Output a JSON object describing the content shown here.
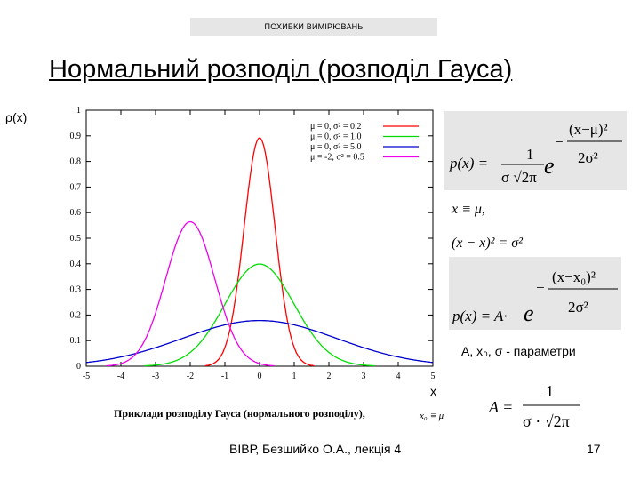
{
  "slide": {
    "banner": "ПОХИБКИ ВИМІРЮВАНЬ",
    "title": "Нормальний розподіл (розподіл Гауса)",
    "y_label": "ρ(x)",
    "x_label": "x",
    "caption": "Приклади розподілу Гауса (нормального розподілу),",
    "footer": "ВІВР, Безшийко О.А., лекція 4",
    "page_number": "17",
    "params_text": "А, x₀, σ  - параметри"
  },
  "formulas": {
    "f1_lhs": "p(x) =",
    "f1_num": "1",
    "f1_den": "σ √2π",
    "f1_base": "e",
    "f1_exp_num": "(x−μ)²",
    "f1_exp_den": "2σ²",
    "f2": "x ≡ μ,",
    "f3": "(x − x)² = σ²",
    "f4_lhs": "p(x) = A·",
    "f4_base": "e",
    "f4_exp_num": "(x−x₀)²",
    "f4_exp_den": "2σ²",
    "f5_lhs": "A =",
    "f5_num": "1",
    "f5_den": "σ · √2π",
    "f6": "x₀ ≡ μ"
  },
  "chart_data": {
    "type": "line",
    "xlim": [
      -5,
      5
    ],
    "ylim": [
      0,
      1
    ],
    "xticks": [
      "-5",
      "-4",
      "-3",
      "-2",
      "-1",
      "0",
      "1",
      "2",
      "3",
      "4",
      "5"
    ],
    "yticks": [
      "0",
      "0.1",
      "0.2",
      "0.3",
      "0.4",
      "0.5",
      "0.6",
      "0.7",
      "0.8",
      "0.9",
      "1"
    ],
    "legend_position": "top-right",
    "series": [
      {
        "name": "μ = 0, σ² = 0.2",
        "mu": 0,
        "sigma2": 0.2,
        "color": "#ff0000"
      },
      {
        "name": "μ = 0, σ² = 1.0",
        "mu": 0,
        "sigma2": 1.0,
        "color": "#00dd00"
      },
      {
        "name": "μ = 0, σ² = 5.0",
        "mu": 0,
        "sigma2": 5.0,
        "color": "#0000cc"
      },
      {
        "name": "μ = -2, σ² = 0.5",
        "mu": -2,
        "sigma2": 0.5,
        "color": "#ee00ee"
      }
    ]
  }
}
